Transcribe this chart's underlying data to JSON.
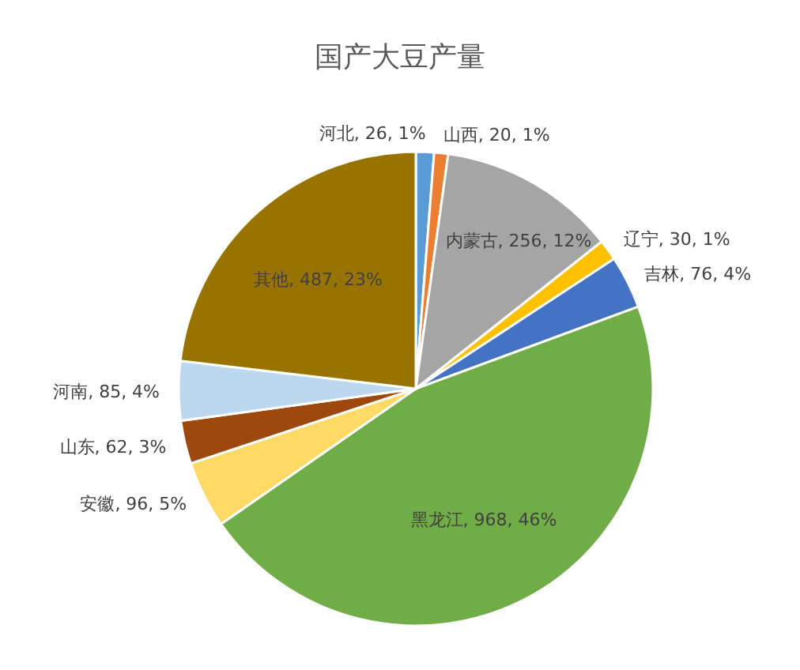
{
  "chart_data": {
    "type": "pie",
    "title": "国产大豆产量",
    "categories": [
      "河北",
      "山西",
      "内蒙古",
      "辽宁",
      "吉林",
      "黑龙江",
      "安徽",
      "山东",
      "河南",
      "其他"
    ],
    "values": [
      26,
      20,
      256,
      30,
      76,
      968,
      96,
      62,
      85,
      487
    ],
    "colors": [
      "#5b9bd5",
      "#ed7d31",
      "#a5a5a5",
      "#ffc000",
      "#4472c4",
      "#70ad47",
      "#ffd966",
      "#9e480e",
      "#bdd7ee",
      "#997300"
    ],
    "value_labels": [
      "26, 1%",
      "20, 1%",
      "256, 12%",
      "30, 1%",
      "76, 4%",
      "968, 46%",
      "96, 5%",
      "62, 3%",
      "85, 4%",
      "487, 23%"
    ]
  }
}
